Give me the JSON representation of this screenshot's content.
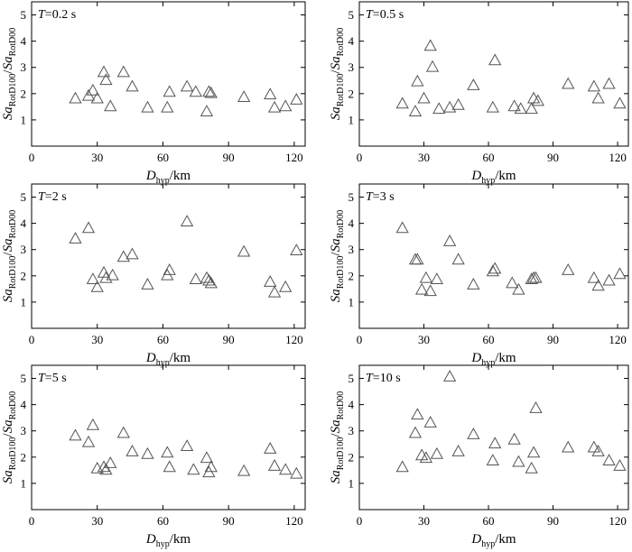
{
  "chart_data": [
    {
      "type": "scatter",
      "panel_var": "T",
      "panel_value": "0.2 s",
      "xlim": [
        0,
        125
      ],
      "ylim": [
        0,
        5.5
      ],
      "xticks": [
        0,
        30,
        60,
        90,
        120
      ],
      "yticks": [
        1,
        2,
        3,
        4,
        5
      ],
      "xlabel_main": "D",
      "xlabel_sub": "hyp",
      "xlabel_unit": "/km",
      "ylabel_num_main": "Sa",
      "ylabel_num_sub": "RotD100",
      "ylabel_den_main": "Sa",
      "ylabel_den_sub": "RotD00",
      "x": [
        20,
        26,
        28,
        30,
        33,
        34,
        36,
        42,
        46,
        53,
        62,
        63,
        71,
        75,
        80,
        81,
        82,
        97,
        109,
        111,
        116,
        121
      ],
      "y": [
        1.8,
        1.9,
        2.1,
        1.8,
        2.8,
        2.5,
        1.5,
        2.8,
        2.25,
        1.45,
        1.45,
        2.05,
        2.25,
        2.05,
        1.3,
        2.05,
        2.0,
        1.85,
        1.95,
        1.45,
        1.5,
        1.75
      ]
    },
    {
      "type": "scatter",
      "panel_var": "T",
      "panel_value": "0.5 s",
      "xlim": [
        0,
        125
      ],
      "ylim": [
        0,
        5.5
      ],
      "xticks": [
        0,
        30,
        60,
        90,
        120
      ],
      "yticks": [
        1,
        2,
        3,
        4,
        5
      ],
      "xlabel_main": "D",
      "xlabel_sub": "hyp",
      "xlabel_unit": "/km",
      "ylabel_num_main": "Sa",
      "ylabel_num_sub": "RotD100",
      "ylabel_den_main": "Sa",
      "ylabel_den_sub": "RotD00",
      "x": [
        20,
        26,
        27,
        30,
        33,
        34,
        37,
        42,
        46,
        53,
        62,
        63,
        72,
        75,
        80,
        81,
        83,
        97,
        109,
        111,
        116,
        121
      ],
      "y": [
        1.6,
        1.3,
        2.45,
        1.8,
        3.8,
        3.0,
        1.4,
        1.45,
        1.55,
        2.3,
        1.45,
        3.25,
        1.5,
        1.4,
        1.4,
        1.8,
        1.7,
        2.35,
        2.25,
        1.8,
        2.35,
        1.6
      ]
    },
    {
      "type": "scatter",
      "panel_var": "T",
      "panel_value": "2 s",
      "xlim": [
        0,
        125
      ],
      "ylim": [
        0,
        5.5
      ],
      "xticks": [
        0,
        30,
        60,
        90,
        120
      ],
      "yticks": [
        1,
        2,
        3,
        4,
        5
      ],
      "xlabel_main": "D",
      "xlabel_sub": "hyp",
      "xlabel_unit": "/km",
      "ylabel_num_main": "Sa",
      "ylabel_num_sub": "RotD100",
      "ylabel_den_main": "Sa",
      "ylabel_den_sub": "RotD00",
      "x": [
        20,
        26,
        28,
        30,
        33,
        34,
        37,
        42,
        46,
        53,
        62,
        63,
        71,
        75,
        80,
        81,
        82,
        97,
        109,
        111,
        116,
        121
      ],
      "y": [
        3.4,
        3.8,
        1.85,
        1.55,
        2.1,
        1.9,
        2.0,
        2.7,
        2.8,
        1.65,
        2.0,
        2.2,
        4.05,
        1.85,
        1.9,
        1.8,
        1.7,
        2.9,
        1.75,
        1.35,
        1.55,
        2.95
      ]
    },
    {
      "type": "scatter",
      "panel_var": "T",
      "panel_value": "3 s",
      "xlim": [
        0,
        125
      ],
      "ylim": [
        0,
        5.5
      ],
      "xticks": [
        0,
        30,
        60,
        90,
        120
      ],
      "yticks": [
        1,
        2,
        3,
        4,
        5
      ],
      "xlabel_main": "D",
      "xlabel_sub": "hyp",
      "xlabel_unit": "/km",
      "ylabel_num_main": "Sa",
      "ylabel_num_sub": "RotD100",
      "ylabel_den_main": "Sa",
      "ylabel_den_sub": "RotD00",
      "x": [
        20,
        26,
        27,
        29,
        31,
        33,
        36,
        42,
        46,
        53,
        62,
        63,
        71,
        74,
        80,
        81,
        82,
        97,
        109,
        111,
        116,
        121
      ],
      "y": [
        3.8,
        2.6,
        2.6,
        1.45,
        1.9,
        1.4,
        1.85,
        3.3,
        2.6,
        1.65,
        2.15,
        2.25,
        1.7,
        1.45,
        1.85,
        1.9,
        1.9,
        2.2,
        1.9,
        1.6,
        1.8,
        2.05
      ]
    },
    {
      "type": "scatter",
      "panel_var": "T",
      "panel_value": "5 s",
      "xlim": [
        0,
        125
      ],
      "ylim": [
        0,
        5.5
      ],
      "xticks": [
        0,
        30,
        60,
        90,
        120
      ],
      "yticks": [
        1,
        2,
        3,
        4,
        5
      ],
      "xlabel_main": "D",
      "xlabel_sub": "hyp",
      "xlabel_unit": "/km",
      "ylabel_num_main": "Sa",
      "ylabel_num_sub": "RotD100",
      "ylabel_den_main": "Sa",
      "ylabel_den_sub": "RotD00",
      "x": [
        20,
        26,
        28,
        30,
        33,
        34,
        36,
        42,
        46,
        53,
        62,
        63,
        71,
        74,
        80,
        81,
        82,
        97,
        109,
        111,
        116,
        121
      ],
      "y": [
        2.8,
        2.55,
        3.2,
        1.55,
        1.6,
        1.5,
        1.75,
        2.9,
        2.2,
        2.1,
        2.15,
        1.6,
        2.4,
        1.5,
        1.95,
        1.4,
        1.6,
        1.45,
        2.3,
        1.65,
        1.5,
        1.35
      ]
    },
    {
      "type": "scatter",
      "panel_var": "T",
      "panel_value": "10 s",
      "xlim": [
        0,
        125
      ],
      "ylim": [
        0,
        5.5
      ],
      "xticks": [
        0,
        30,
        60,
        90,
        120
      ],
      "yticks": [
        1,
        2,
        3,
        4,
        5
      ],
      "xlabel_main": "D",
      "xlabel_sub": "hyp",
      "xlabel_unit": "/km",
      "ylabel_num_main": "Sa",
      "ylabel_num_sub": "RotD100",
      "ylabel_den_main": "Sa",
      "ylabel_den_sub": "RotD00",
      "x": [
        20,
        26,
        27,
        29,
        31,
        33,
        36,
        42,
        46,
        53,
        62,
        63,
        72,
        74,
        80,
        81,
        82,
        97,
        109,
        111,
        116,
        121
      ],
      "y": [
        1.6,
        2.9,
        3.6,
        2.05,
        1.95,
        3.3,
        2.1,
        5.05,
        2.2,
        2.85,
        1.85,
        2.5,
        2.65,
        1.8,
        1.55,
        2.15,
        3.85,
        2.35,
        2.35,
        2.2,
        1.85,
        1.65
      ]
    }
  ]
}
